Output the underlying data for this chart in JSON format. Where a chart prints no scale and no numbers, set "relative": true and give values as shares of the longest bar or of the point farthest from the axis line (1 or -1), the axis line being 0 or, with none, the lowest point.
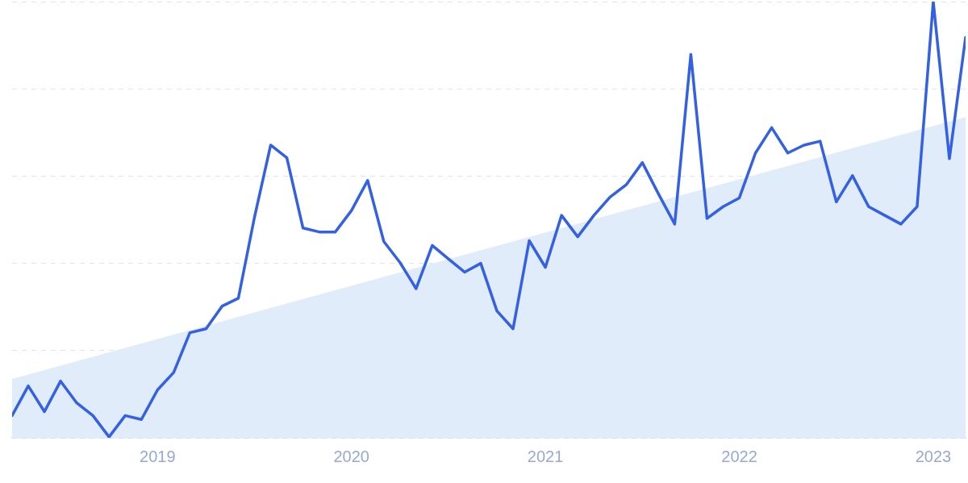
{
  "chart_data": {
    "type": "line",
    "relative": true,
    "grid": "y",
    "line_style": "solid",
    "marker": "none",
    "x": [
      "2018-04",
      "2018-05",
      "2018-06",
      "2018-07",
      "2018-08",
      "2018-09",
      "2018-10",
      "2018-11",
      "2018-12",
      "2019-01",
      "2019-02",
      "2019-03",
      "2019-04",
      "2019-05",
      "2019-06",
      "2019-07",
      "2019-08",
      "2019-09",
      "2019-10",
      "2019-11",
      "2019-12",
      "2020-01",
      "2020-02",
      "2020-03",
      "2020-04",
      "2020-05",
      "2020-06",
      "2020-07",
      "2020-08",
      "2020-09",
      "2020-10",
      "2020-11",
      "2020-12",
      "2021-01",
      "2021-02",
      "2021-03",
      "2021-04",
      "2021-05",
      "2021-06",
      "2021-07",
      "2021-08",
      "2021-09",
      "2021-10",
      "2021-11",
      "2021-12",
      "2022-01",
      "2022-02",
      "2022-03",
      "2022-04",
      "2022-05",
      "2022-06",
      "2022-07",
      "2022-08",
      "2022-09",
      "2022-10",
      "2022-11",
      "2022-12",
      "2023-01",
      "2023-02",
      "2023-03"
    ],
    "xlim": [
      "2018-04",
      "2023-03"
    ],
    "xticks": [
      {
        "value": "2019-01",
        "label": "2019"
      },
      {
        "value": "2020-01",
        "label": "2020"
      },
      {
        "value": "2021-01",
        "label": "2021"
      },
      {
        "value": "2022-01",
        "label": "2022"
      },
      {
        "value": "2023-01",
        "label": "2023"
      }
    ],
    "series": [
      {
        "type": "area",
        "color": "#e1ecfb",
        "x": [
          "2018-04",
          "2023-03"
        ],
        "values": [
          0.135,
          0.735
        ]
      },
      {
        "color": "#3461e3",
        "values": [
          0.051,
          0.119,
          0.06,
          0.13,
          0.08,
          0.051,
          0.002,
          0.051,
          0.042,
          0.11,
          0.15,
          0.241,
          0.25,
          0.302,
          0.32,
          0.506,
          0.671,
          0.642,
          0.481,
          0.472,
          0.472,
          0.521,
          0.59,
          0.45,
          0.402,
          0.342,
          0.441,
          0.41,
          0.38,
          0.4,
          0.291,
          0.25,
          0.452,
          0.391,
          0.51,
          0.461,
          0.51,
          0.552,
          0.58,
          0.631,
          0.559,
          0.49,
          0.879,
          0.503,
          0.53,
          0.55,
          0.653,
          0.711,
          0.653,
          0.671,
          0.68,
          0.541,
          0.601,
          0.53,
          0.51,
          0.49,
          0.53,
          1,
          0.64,
          0.918
        ]
      }
    ]
  }
}
